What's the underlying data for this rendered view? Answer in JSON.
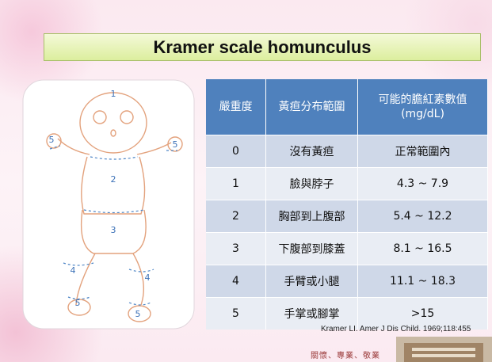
{
  "header": {
    "title": "Kramer scale homunculus"
  },
  "illustration": {
    "zone_labels": [
      "1",
      "5",
      "5",
      "2",
      "3",
      "4",
      "4",
      "5",
      "5"
    ]
  },
  "table": {
    "headers": [
      "嚴重度",
      "黃疸分布範圍",
      "可能的膽紅素數值\n(mg/dL)"
    ],
    "rows": [
      [
        "0",
        "沒有黃疸",
        "正常範圍內"
      ],
      [
        "1",
        "臉與脖子",
        "4.3 ~ 7.9"
      ],
      [
        "2",
        "胸部到上腹部",
        "5.4 ~ 12.2"
      ],
      [
        "3",
        "下腹部到膝蓋",
        "8.1 ~ 16.5"
      ],
      [
        "4",
        "手臂或小腿",
        "11.1 ~ 18.3"
      ],
      [
        "5",
        "手掌或腳掌",
        ">15"
      ]
    ]
  },
  "citation": "Kramer LI. Amer J Dis Child. 1969;118:455",
  "footer": {
    "motto": "關懷、專業、敬業"
  }
}
